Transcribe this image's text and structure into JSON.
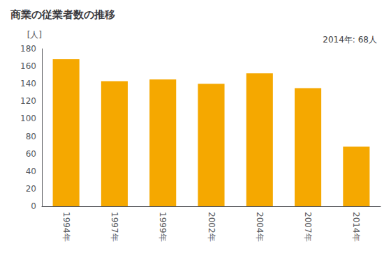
{
  "chart_data": {
    "type": "bar",
    "title": "商業の従業者数の推移",
    "ylabel": "[人]",
    "annotation": "2014年: 68人",
    "categories": [
      "1994年",
      "1997年",
      "1999年",
      "2002年",
      "2004年",
      "2007年",
      "2014年"
    ],
    "values": [
      168,
      143,
      145,
      140,
      152,
      135,
      68
    ],
    "color": "#F5A800",
    "ylim": [
      0,
      180
    ],
    "yticks": [
      0,
      20,
      40,
      60,
      80,
      100,
      120,
      140,
      160,
      180
    ],
    "grid": false
  }
}
